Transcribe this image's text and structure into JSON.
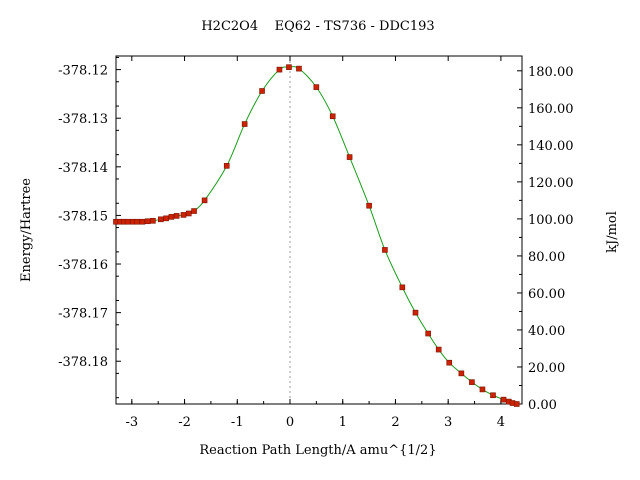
{
  "chart_data": {
    "type": "line",
    "title": "H2C2O4    EQ62 - TS736 - DDC193",
    "xlabel": "Reaction Path Length/A amu^{1/2}",
    "ylabel_left": "Energy/Hartree",
    "ylabel_right": "kJ/mol",
    "xlim": [
      -3.3,
      4.4
    ],
    "ylim": [
      -378.1888,
      -378.1172
    ],
    "ylim_right": [
      0.0,
      188.0
    ],
    "x_ticks": [
      -3,
      -2,
      -1,
      0,
      1,
      2,
      3,
      4
    ],
    "x_tick_labels": [
      "-3",
      "-2",
      "-1",
      "0",
      "1",
      "2",
      "3",
      "4"
    ],
    "y_ticks_left": [
      -378.12,
      -378.13,
      -378.14,
      -378.15,
      -378.16,
      -378.17,
      -378.18
    ],
    "y_tick_labels_left": [
      "-378.12",
      "-378.13",
      "-378.14",
      "-378.15",
      "-378.16",
      "-378.17",
      "-378.18"
    ],
    "y_ticks_right": [
      0,
      20,
      40,
      60,
      80,
      100,
      120,
      140,
      160,
      180
    ],
    "y_tick_labels_right": [
      "0.00",
      "20.00",
      "40.00",
      "60.00",
      "80.00",
      "100.00",
      "120.00",
      "140.00",
      "160.00",
      "180.00"
    ],
    "ts_marker_x": 0,
    "grid": false,
    "legend": "none",
    "colors": {
      "line": "#1a9e1a",
      "marker": "#cc2200",
      "marker_edge": "#7a1200",
      "ts_line": "#999999"
    },
    "series": [
      {
        "x": [
          -3.3,
          -3.22,
          -3.15,
          -3.08,
          -2.98,
          -2.9,
          -2.8,
          -2.7,
          -2.6,
          -2.45,
          -2.35,
          -2.25,
          -2.15,
          -2.02,
          -1.92,
          -1.82,
          -1.62,
          -1.2,
          -0.86,
          -0.53,
          -0.2,
          -0.02,
          0.17,
          0.5,
          0.81,
          1.13,
          1.5,
          1.8,
          2.13,
          2.38,
          2.62,
          2.82,
          3.02,
          3.25,
          3.45,
          3.65,
          3.85,
          4.05,
          4.15,
          4.22,
          4.3
        ],
        "y": [
          -378.1513,
          -378.1513,
          -378.1513,
          -378.1513,
          -378.1513,
          -378.1513,
          -378.1513,
          -378.1512,
          -378.1511,
          -378.1508,
          -378.1506,
          -378.1503,
          -378.1501,
          -378.1499,
          -378.1496,
          -378.1491,
          -378.1469,
          -378.1398,
          -378.1312,
          -378.1244,
          -378.12,
          -378.1195,
          -378.1198,
          -378.1236,
          -378.1296,
          -378.138,
          -378.148,
          -378.1571,
          -378.1648,
          -378.17,
          -378.1743,
          -378.1776,
          -378.1803,
          -378.1825,
          -378.1843,
          -378.1858,
          -378.187,
          -378.1879,
          -378.1883,
          -378.1886,
          -378.1888
        ]
      }
    ]
  }
}
